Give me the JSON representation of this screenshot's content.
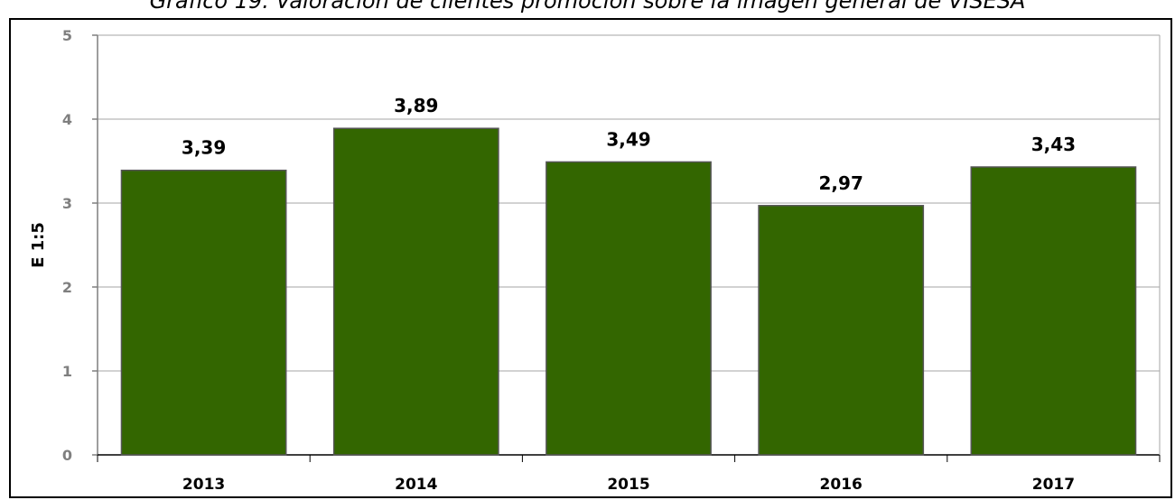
{
  "chart_data": {
    "type": "bar",
    "title": "Gráfico 19. Valoración de clientes promoción sobre la imagen general de VISESA",
    "xlabel": "",
    "ylabel": "E 1:5",
    "categories": [
      "2013",
      "2014",
      "2015",
      "2016",
      "2017"
    ],
    "values": [
      3.39,
      3.89,
      3.49,
      2.97,
      3.43
    ],
    "value_labels": [
      "3,39",
      "3,89",
      "3,49",
      "2,97",
      "3,43"
    ],
    "ylim": [
      0,
      5
    ],
    "yticks": [
      "0",
      "1",
      "2",
      "3",
      "4",
      "5"
    ],
    "grid": true,
    "legend": "none",
    "colors": {
      "bar": "#336600",
      "bar_border": "#555555",
      "grid": "#a6a6a6",
      "axis": "#7f7f7f"
    }
  }
}
